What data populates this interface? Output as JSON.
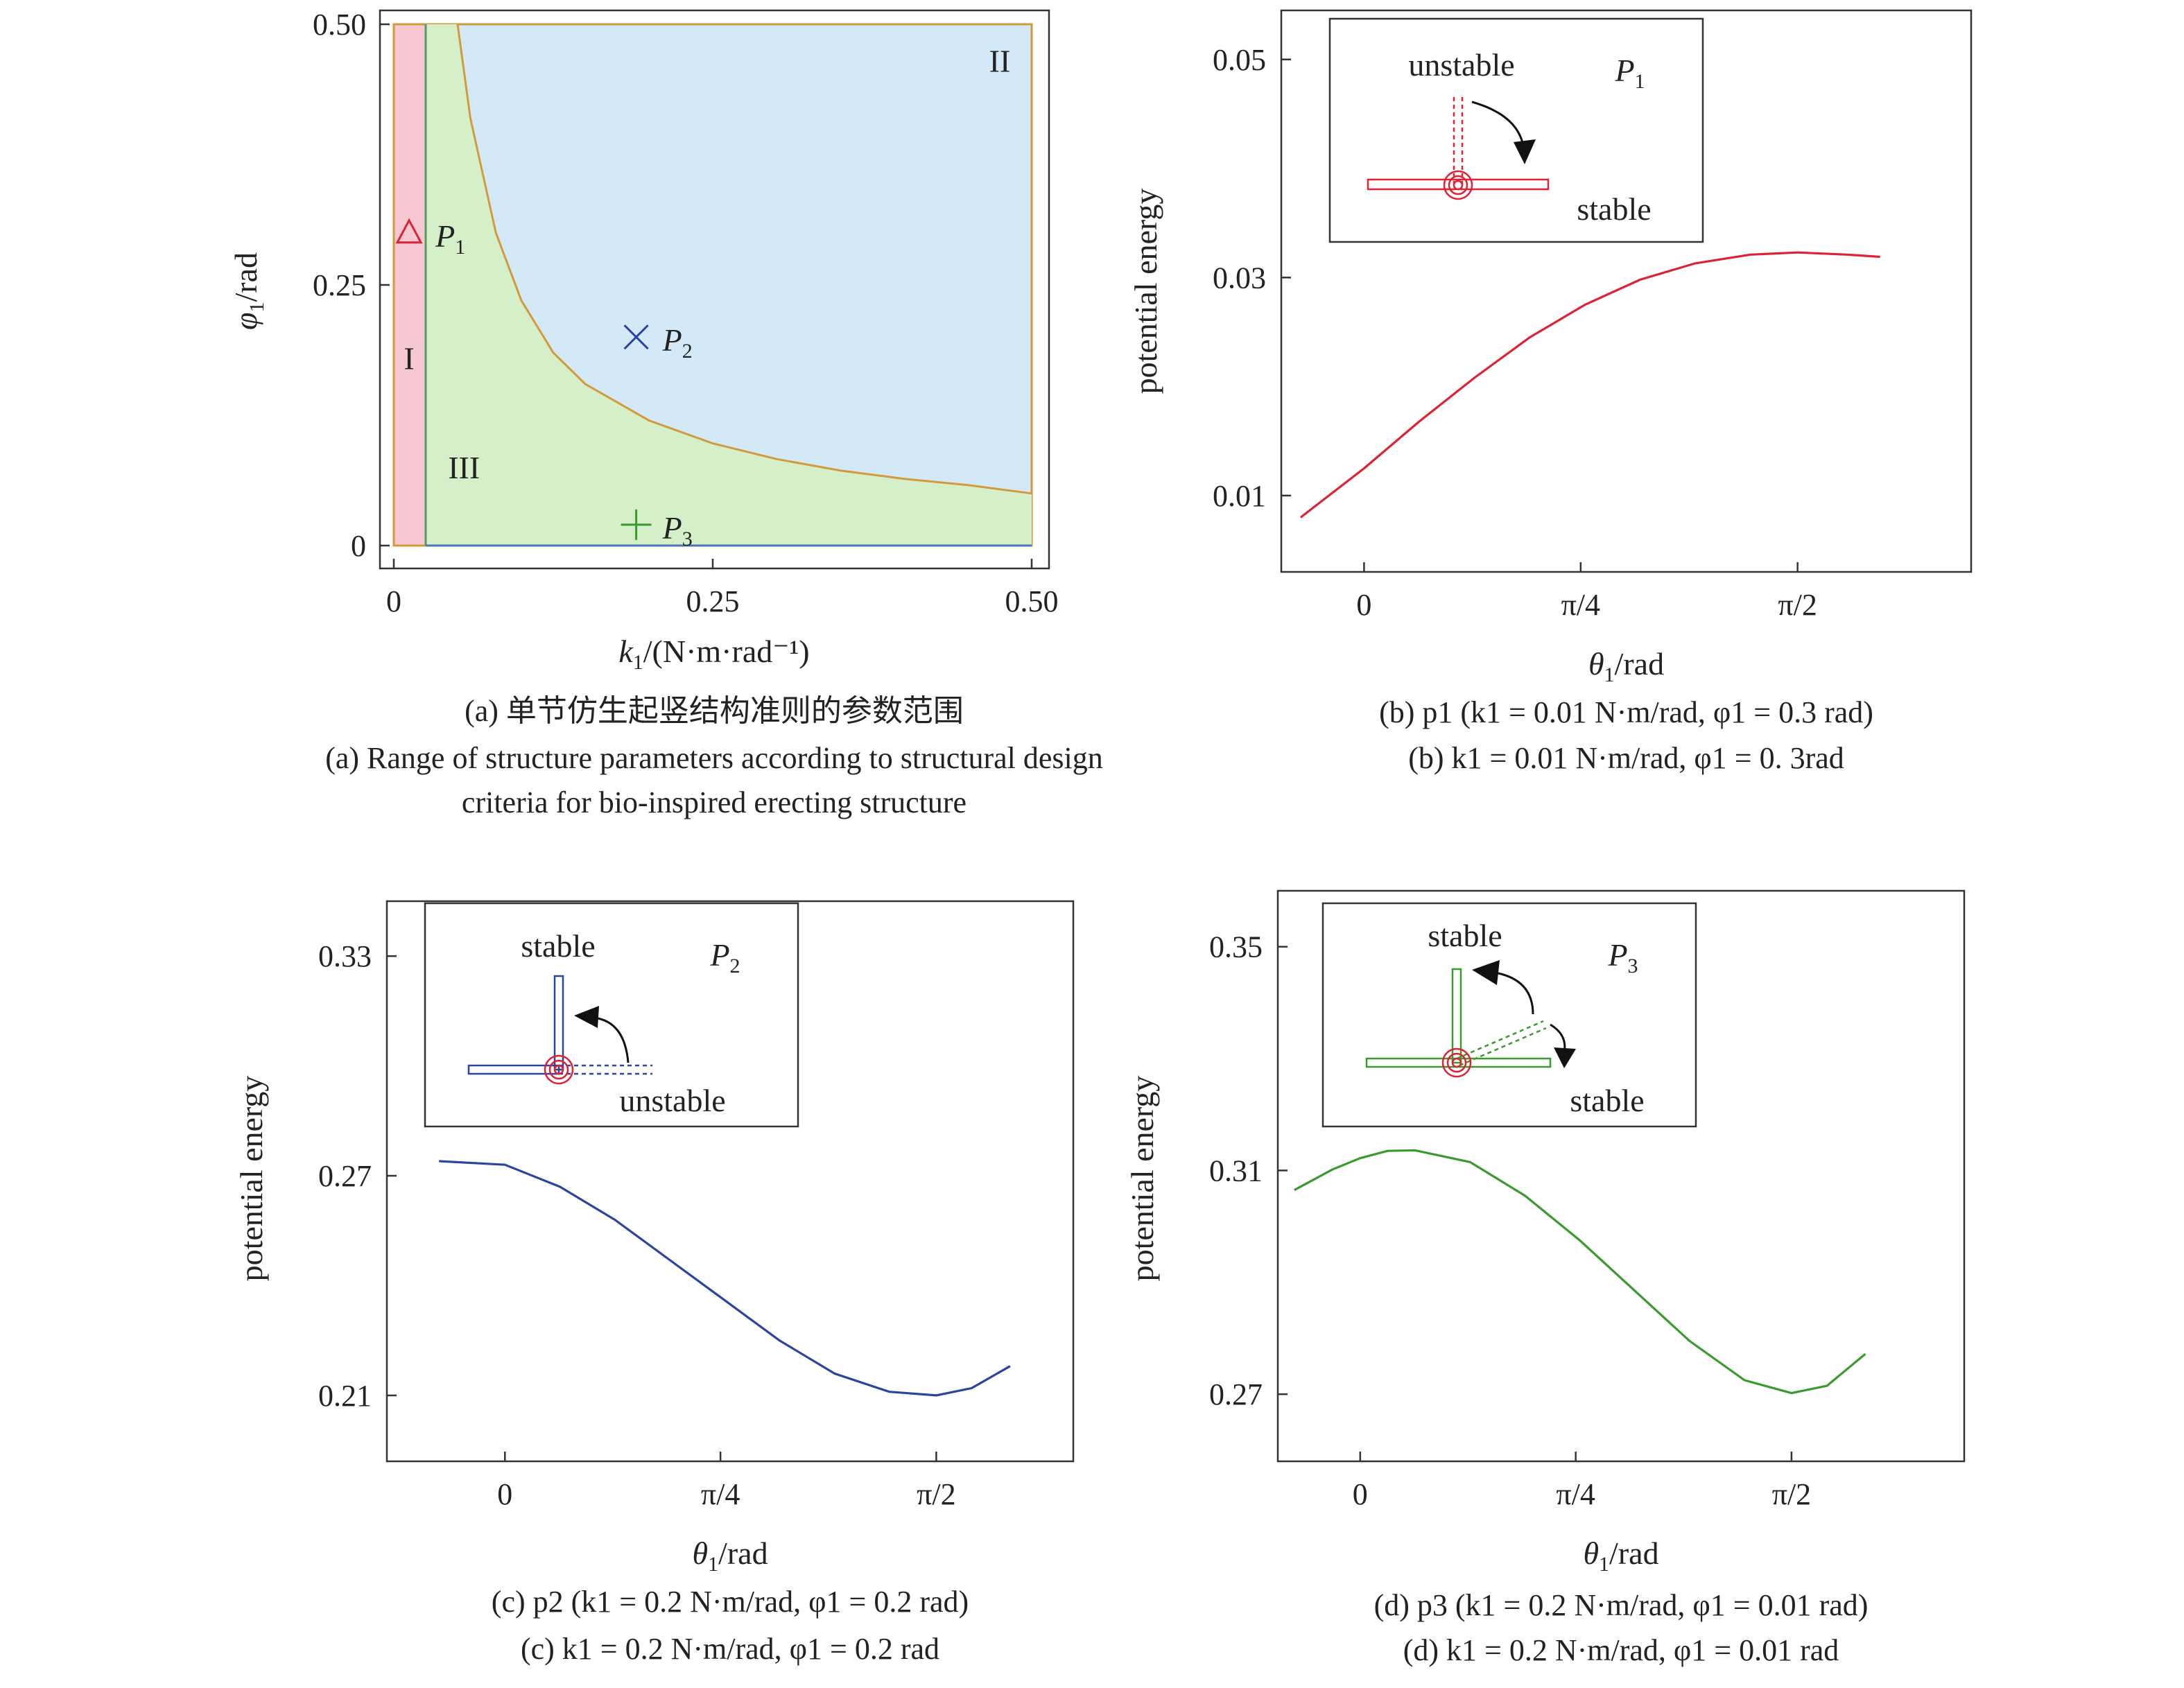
{
  "colors": {
    "region_I": "#f6c9d2",
    "region_II": "#d4e9f8",
    "region_III": "#d5efc9",
    "boundary": "#d39a3c",
    "red": "#dd2233",
    "blue": "#2a45a0",
    "green": "#3a9a2e",
    "axis": "#333333"
  },
  "chart_data": [
    {
      "id": "a",
      "type": "region-map",
      "xlabel": "k1/(N·m·rad⁻¹)",
      "ylabel": "φ1/rad",
      "xlim": [
        0,
        0.5
      ],
      "ylim": [
        0,
        0.5
      ],
      "xticks": [
        "0",
        "0.25",
        "0.50"
      ],
      "xtick_values": [
        0,
        0.25,
        0.5
      ],
      "yticks": [
        "0",
        "0.25",
        "0.50"
      ],
      "ytick_values": [
        0,
        0.25,
        0.5
      ],
      "region_I_k_max": 0.025,
      "boundary_curve": {
        "k": [
          0.05,
          0.06,
          0.08,
          0.1,
          0.125,
          0.15,
          0.2,
          0.25,
          0.3,
          0.35,
          0.4,
          0.45,
          0.5
        ],
        "phi": [
          0.5,
          0.41,
          0.3,
          0.235,
          0.185,
          0.155,
          0.12,
          0.098,
          0.083,
          0.072,
          0.064,
          0.058,
          0.05
        ]
      },
      "regions": [
        {
          "label": "I",
          "k": 0.012,
          "phi": 0.18
        },
        {
          "label": "II",
          "k": 0.475,
          "phi": 0.465
        },
        {
          "label": "III",
          "k": 0.055,
          "phi": 0.075
        }
      ],
      "points": [
        {
          "name": "P",
          "sub": "1",
          "marker": "triangle",
          "color": "red",
          "k": 0.012,
          "phi": 0.3
        },
        {
          "name": "P",
          "sub": "2",
          "marker": "x",
          "color": "blue",
          "k": 0.19,
          "phi": 0.2
        },
        {
          "name": "P",
          "sub": "3",
          "marker": "plus",
          "color": "green",
          "k": 0.19,
          "phi": 0.02
        }
      ],
      "caption_cn": "(a) 单节仿生起竖结构准则的参数范围",
      "caption_en_1": "(a) Range of structure parameters according to structural design",
      "caption_en_2": "criteria for bio-inspired erecting structure"
    },
    {
      "id": "b",
      "type": "line",
      "color": "red",
      "xlabel": "θ1/rad",
      "ylabel": "potential energy",
      "xlim": [
        -0.3,
        2.2
      ],
      "ylim": [
        0.003,
        0.0545
      ],
      "xticks": [
        "0",
        "π/4",
        "π/2"
      ],
      "xtick_values": [
        0,
        0.785,
        1.571
      ],
      "yticks": [
        "0.01",
        "0.03",
        "0.05"
      ],
      "ytick_values": [
        0.01,
        0.03,
        0.05
      ],
      "series": [
        {
          "x": [
            -0.23,
            0.0,
            0.2,
            0.4,
            0.6,
            0.8,
            1.0,
            1.2,
            1.4,
            1.571,
            1.75,
            1.87
          ],
          "y": [
            0.008,
            0.0125,
            0.0168,
            0.0208,
            0.0245,
            0.0275,
            0.0298,
            0.0313,
            0.0321,
            0.0323,
            0.0321,
            0.0319
          ]
        }
      ],
      "inset": {
        "label": "P",
        "sub": "1",
        "top_text": "unstable",
        "bottom_text": "stable",
        "kind": "b"
      },
      "caption_1": "(b)  p1 (k1 = 0.01 N·m/rad, φ1 = 0.3 rad)",
      "caption_2": "(b) k1 = 0.01 N·m/rad, φ1 = 0. 3rad"
    },
    {
      "id": "c",
      "type": "line",
      "color": "blue",
      "xlabel": "θ1/rad",
      "ylabel": "potential energy",
      "xlim": [
        -0.43,
        2.07
      ],
      "ylim": [
        0.192,
        0.345
      ],
      "xticks": [
        "0",
        "π/4",
        "π/2"
      ],
      "xtick_values": [
        0,
        0.785,
        1.571
      ],
      "yticks": [
        "0.21",
        "0.27",
        "0.33"
      ],
      "ytick_values": [
        0.21,
        0.27,
        0.33
      ],
      "series": [
        {
          "x": [
            -0.24,
            0.0,
            0.2,
            0.4,
            0.6,
            0.8,
            1.0,
            1.2,
            1.4,
            1.571,
            1.7,
            1.84
          ],
          "y": [
            0.274,
            0.273,
            0.267,
            0.258,
            0.247,
            0.236,
            0.225,
            0.216,
            0.211,
            0.21,
            0.212,
            0.218
          ]
        }
      ],
      "inset": {
        "label": "P",
        "sub": "2",
        "top_text": "stable",
        "bottom_text": "unstable",
        "kind": "c"
      },
      "caption_1": "(c) p2 (k1 = 0.2 N·m/rad, φ1 = 0.2 rad)",
      "caption_2": "(c) k1 = 0.2 N·m/rad, φ1 = 0.2 rad"
    },
    {
      "id": "d",
      "type": "line",
      "color": "green",
      "xlabel": "θ1/rad",
      "ylabel": "potential energy",
      "xlim": [
        -0.3,
        2.2
      ],
      "ylim": [
        0.258,
        0.36
      ],
      "xticks": [
        "0",
        "π/4",
        "π/2"
      ],
      "xtick_values": [
        0,
        0.785,
        1.571
      ],
      "yticks": [
        "0.27",
        "0.31",
        "0.35"
      ],
      "ytick_values": [
        0.27,
        0.31,
        0.35
      ],
      "series": [
        {
          "x": [
            -0.24,
            -0.1,
            0.0,
            0.1,
            0.2,
            0.4,
            0.6,
            0.8,
            1.0,
            1.2,
            1.4,
            1.571,
            1.7,
            1.84
          ],
          "y": [
            0.3065,
            0.3102,
            0.3122,
            0.3135,
            0.3136,
            0.3115,
            0.3055,
            0.2975,
            0.2885,
            0.2795,
            0.2725,
            0.2702,
            0.2715,
            0.2772
          ]
        }
      ],
      "inset": {
        "label": "P",
        "sub": "3",
        "top_text": "stable",
        "bottom_text": "stable",
        "kind": "d"
      },
      "caption_1": "(d) p3 (k1 = 0.2 N·m/rad, φ1 = 0.01 rad)",
      "caption_2": "(d) k1 = 0.2 N·m/rad, φ1 = 0.01 rad"
    }
  ]
}
